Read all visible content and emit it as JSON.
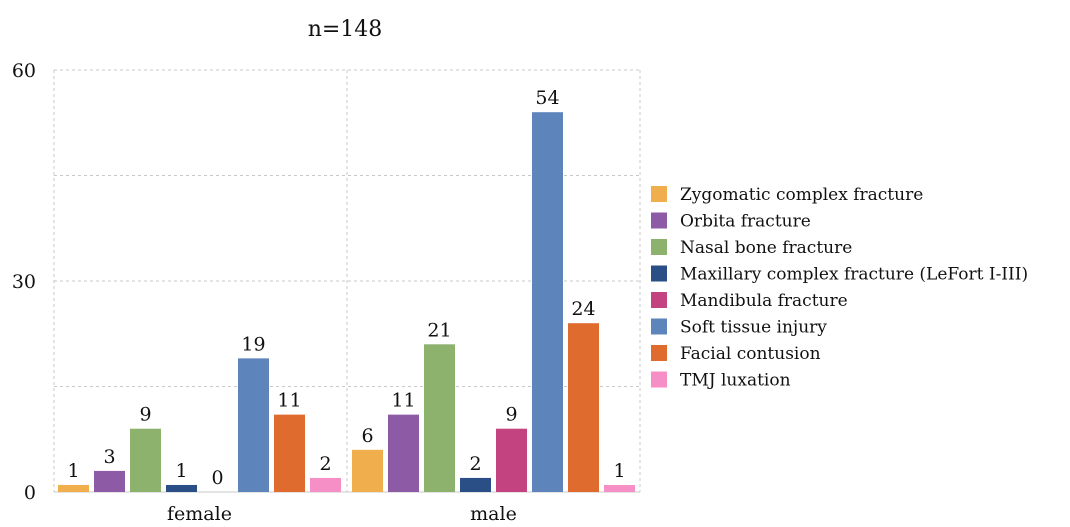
{
  "chart_data": {
    "type": "bar",
    "title": "n=148",
    "categories": [
      "female",
      "male"
    ],
    "series": [
      {
        "name": "Zygomatic complex fracture",
        "color": "#F0AE4C",
        "values": [
          1,
          6
        ]
      },
      {
        "name": "Orbita fracture",
        "color": "#8D5BA5",
        "values": [
          3,
          11
        ]
      },
      {
        "name": "Nasal bone fracture",
        "color": "#8DB26E",
        "values": [
          9,
          21
        ]
      },
      {
        "name": "Maxillary complex fracture (LeFort I-III)",
        "color": "#2A4E86",
        "values": [
          1,
          2
        ]
      },
      {
        "name": "Mandibula fracture",
        "color": "#C2437F",
        "values": [
          0,
          9
        ]
      },
      {
        "name": "Soft tissue injury",
        "color": "#5E84BC",
        "values": [
          19,
          54
        ]
      },
      {
        "name": "Facial contusion",
        "color": "#E06B2E",
        "values": [
          11,
          24
        ]
      },
      {
        "name": "TMJ luxation",
        "color": "#F58FC6",
        "values": [
          2,
          1
        ]
      }
    ],
    "xlabel": "",
    "ylabel": "",
    "ylim": [
      0,
      60
    ],
    "yticks": [
      0,
      30,
      60
    ],
    "grid": true,
    "legend_position": "right"
  }
}
